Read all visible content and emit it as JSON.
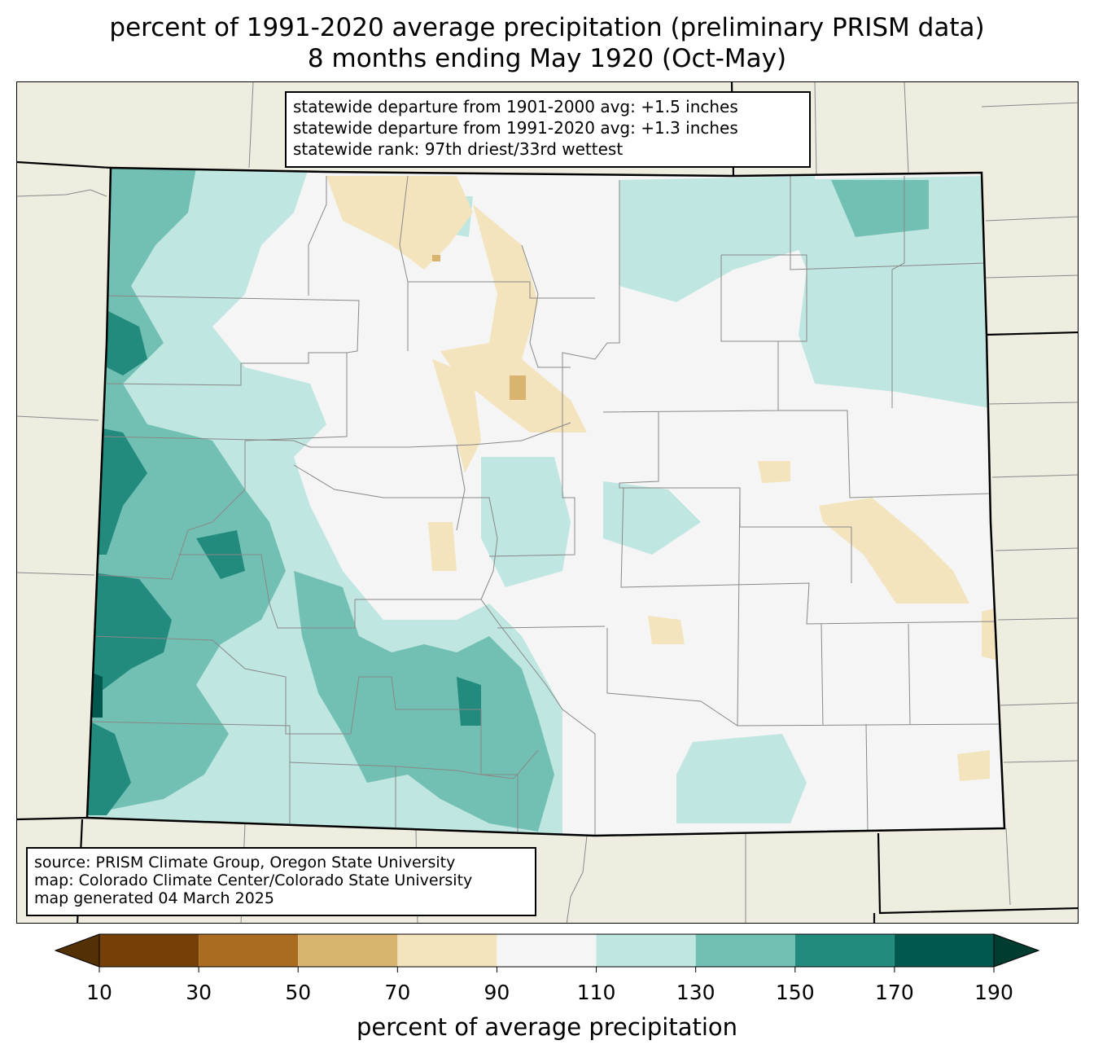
{
  "title": {
    "line1": "percent of 1991-2020 average precipitation (preliminary PRISM data)",
    "line2": "8 months ending May 1920 (Oct-May)"
  },
  "stats": {
    "line1": "statewide departure from 1901-2000 avg: +1.5 inches",
    "line2": "statewide departure from 1991-2020 avg: +1.3 inches",
    "line3": "statewide rank: 97th driest/33rd wettest"
  },
  "source": {
    "line1": "source: PRISM Climate Group, Oregon State University",
    "line2": "map: Colorado Climate Center/Colorado State University",
    "line3": "map generated 04 March 2025"
  },
  "colorbar": {
    "label": "percent of average precipitation",
    "ticks": [
      "10",
      "30",
      "50",
      "70",
      "90",
      "110",
      "130",
      "150",
      "170",
      "190"
    ],
    "under_color": "#543005",
    "over_color": "#003c30",
    "colors": [
      "#744007",
      "#a96c20",
      "#d8b46e",
      "#f4e4bd",
      "#f4f5f4",
      "#bfe6e0",
      "#72c0b4",
      "#238a7e",
      "#01584e"
    ]
  },
  "colors": {
    "background_land": "#efede0",
    "border": "#000000",
    "county_lines": "#888888"
  }
}
